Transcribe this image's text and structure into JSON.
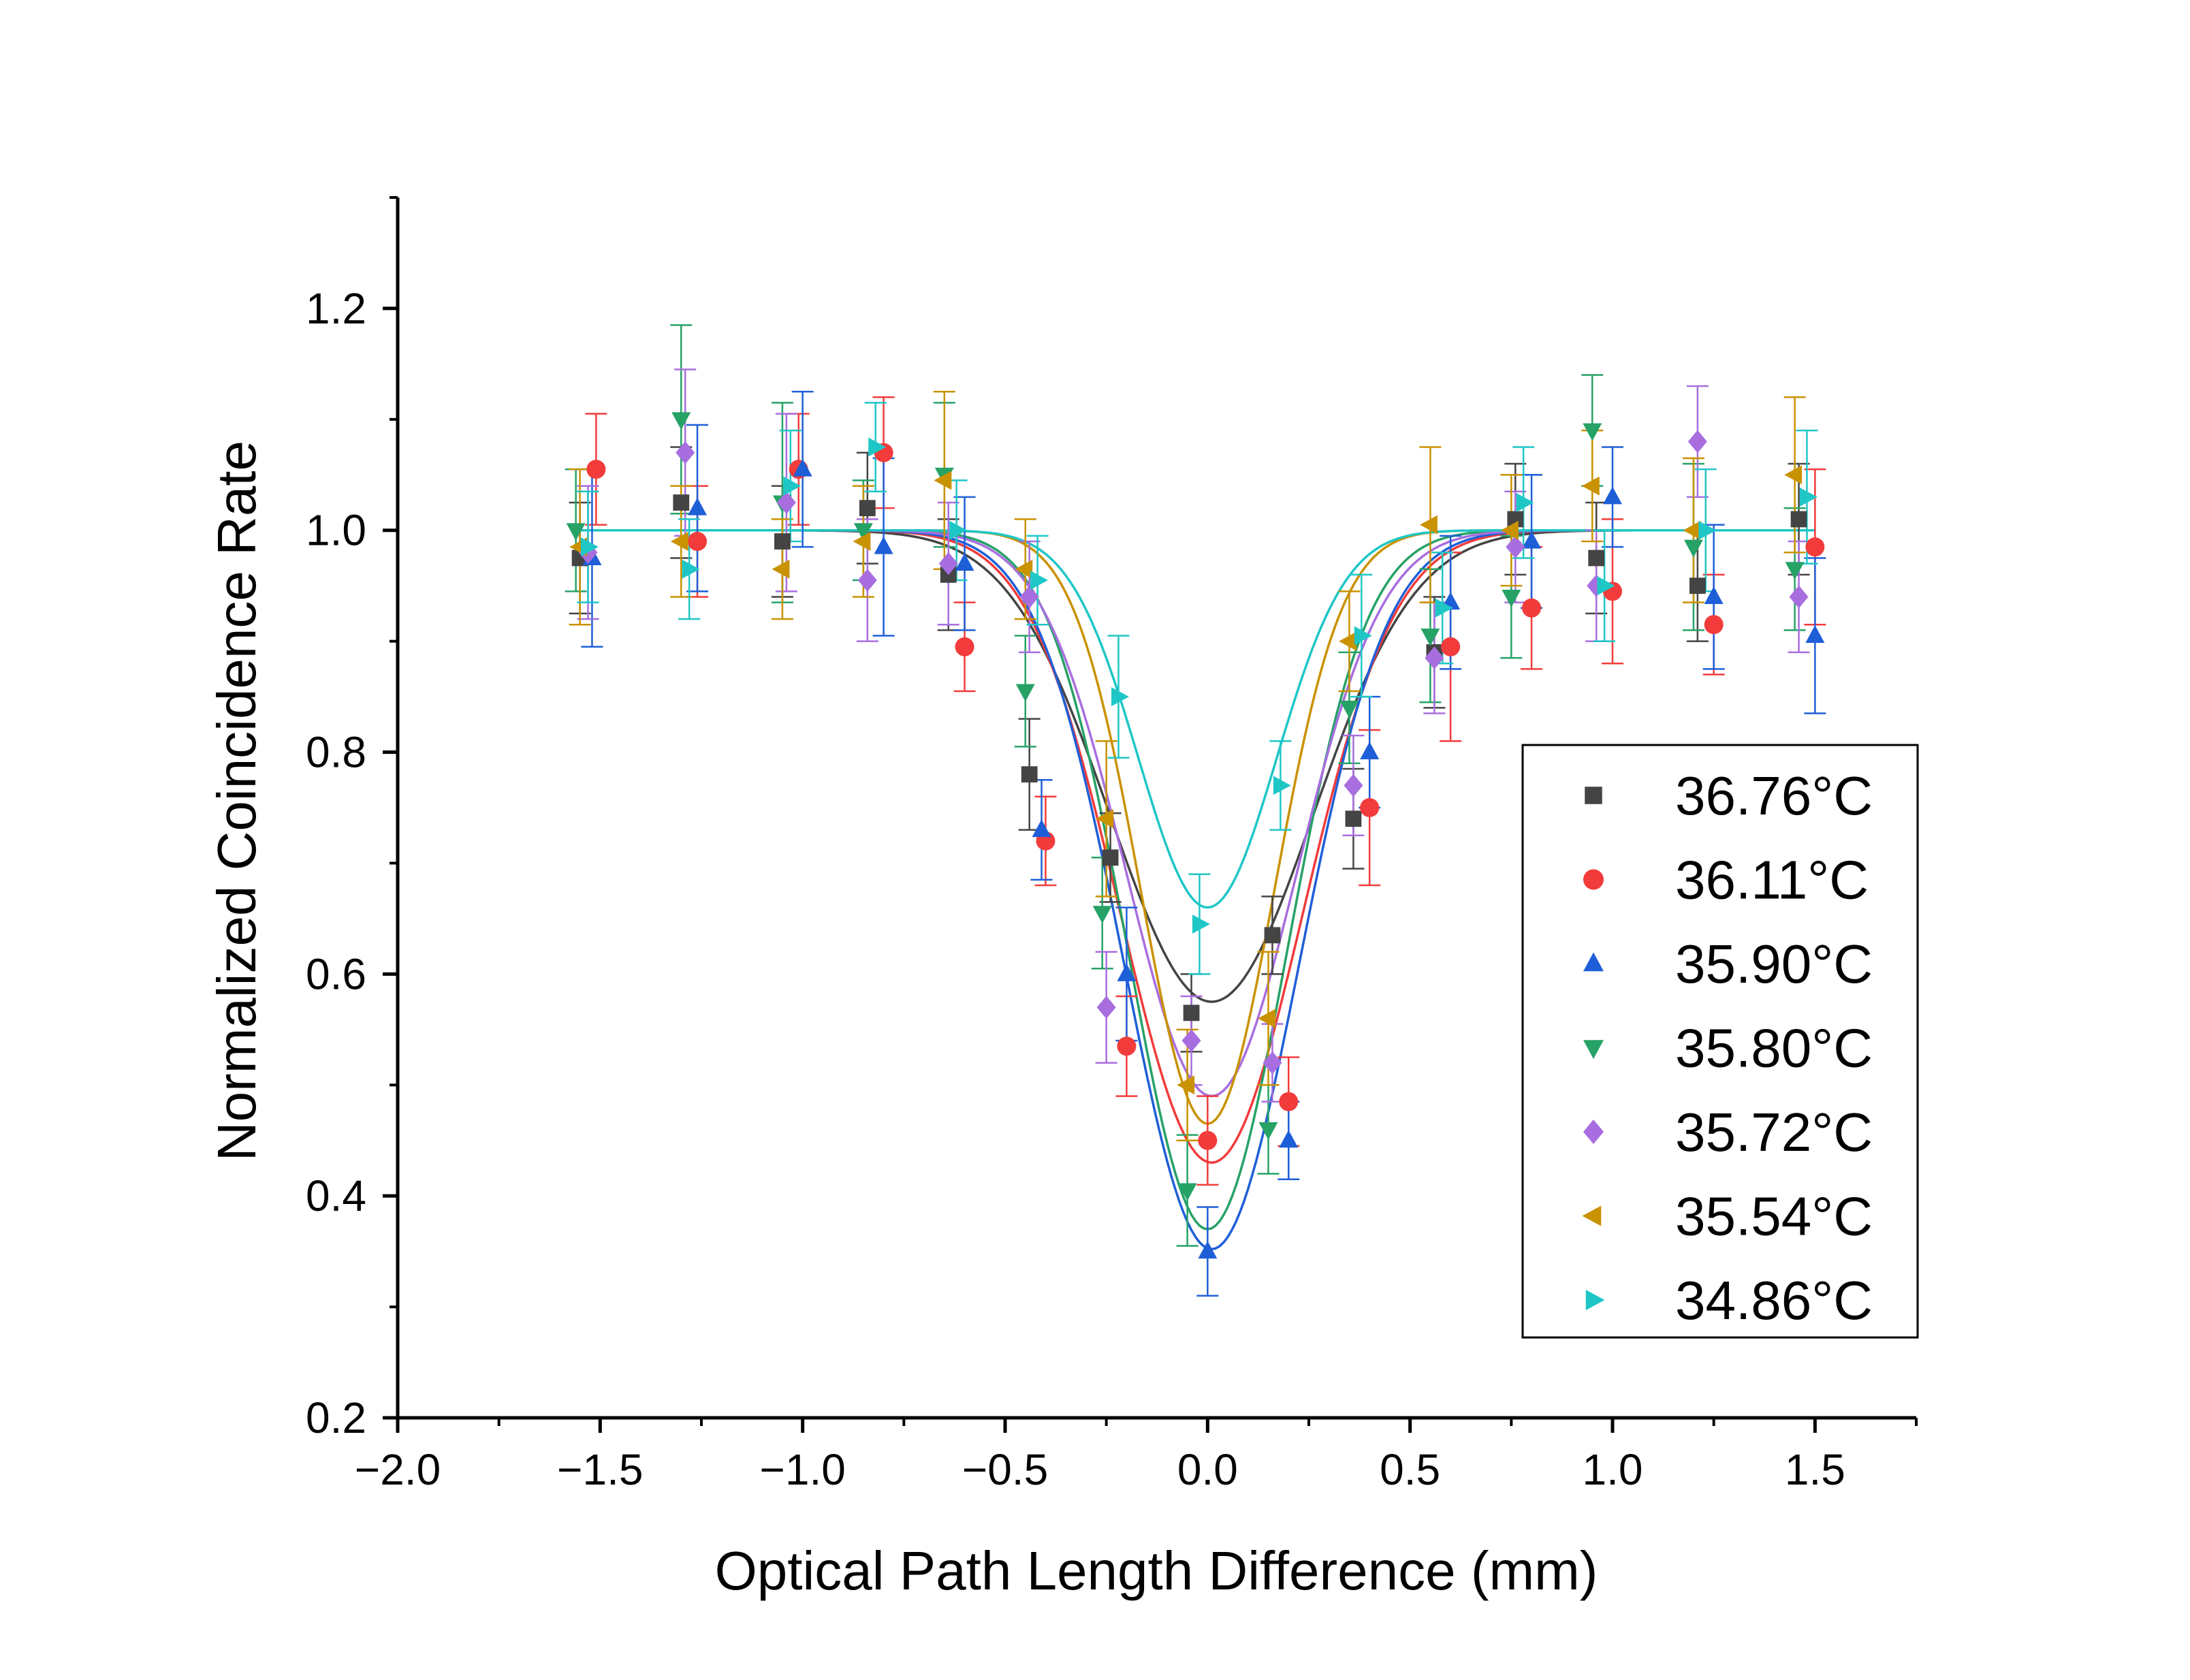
{
  "chart_data": {
    "type": "scatter",
    "xlabel": "Optical Path Length Difference (mm)",
    "ylabel": "Normalized Coincidence Rate",
    "xlim": [
      -2.0,
      1.75
    ],
    "ylim": [
      0.2,
      1.3
    ],
    "xticks": [
      -2.0,
      -1.5,
      -1.0,
      -0.5,
      0.0,
      0.5,
      1.0,
      1.5
    ],
    "yticks": [
      0.2,
      0.4,
      0.6,
      0.8,
      1.0,
      1.2
    ],
    "xtick_labels": [
      "−2.0",
      "−1.5",
      "−1.0",
      "−0.5",
      "0.0",
      "0.5",
      "1.0",
      "1.5"
    ],
    "ytick_labels": [
      "0.2",
      "0.4",
      "0.6",
      "0.8",
      "1.0",
      "1.2"
    ],
    "legend_position": "right-center",
    "fit_type": "gaussian dip",
    "series": [
      {
        "name": "36.76°C",
        "color": "#444444",
        "marker": "square",
        "fit": {
          "baseline": 1.0,
          "depth": 0.425,
          "sigma": 0.25,
          "center": 0.01
        },
        "points": [
          {
            "x": -1.55,
            "y": 0.975,
            "err": 0.05
          },
          {
            "x": -1.3,
            "y": 1.025,
            "err": 0.05
          },
          {
            "x": -1.05,
            "y": 0.99,
            "err": 0.05
          },
          {
            "x": -0.84,
            "y": 1.02,
            "err": 0.05
          },
          {
            "x": -0.64,
            "y": 0.96,
            "err": 0.05
          },
          {
            "x": -0.44,
            "y": 0.78,
            "err": 0.05
          },
          {
            "x": -0.24,
            "y": 0.705,
            "err": 0.04
          },
          {
            "x": -0.04,
            "y": 0.565,
            "err": 0.035
          },
          {
            "x": 0.16,
            "y": 0.635,
            "err": 0.035
          },
          {
            "x": 0.36,
            "y": 0.74,
            "err": 0.045
          },
          {
            "x": 0.56,
            "y": 0.89,
            "err": 0.05
          },
          {
            "x": 0.76,
            "y": 1.01,
            "err": 0.05
          },
          {
            "x": 0.96,
            "y": 0.975,
            "err": 0.05
          },
          {
            "x": 1.21,
            "y": 0.95,
            "err": 0.05
          },
          {
            "x": 1.46,
            "y": 1.01,
            "err": 0.05
          }
        ]
      },
      {
        "name": "36.11°C",
        "color": "#f23b3b",
        "marker": "circle",
        "fit": {
          "baseline": 1.0,
          "depth": 0.57,
          "sigma": 0.225,
          "center": 0.01
        },
        "points": [
          {
            "x": -1.51,
            "y": 1.055,
            "err": 0.05
          },
          {
            "x": -1.26,
            "y": 0.99,
            "err": 0.05
          },
          {
            "x": -1.01,
            "y": 1.055,
            "err": 0.05
          },
          {
            "x": -0.8,
            "y": 1.07,
            "err": 0.05
          },
          {
            "x": -0.6,
            "y": 0.895,
            "err": 0.04
          },
          {
            "x": -0.4,
            "y": 0.72,
            "err": 0.04
          },
          {
            "x": -0.2,
            "y": 0.535,
            "err": 0.045
          },
          {
            "x": 0.0,
            "y": 0.45,
            "err": 0.04
          },
          {
            "x": 0.2,
            "y": 0.485,
            "err": 0.04
          },
          {
            "x": 0.4,
            "y": 0.75,
            "err": 0.07
          },
          {
            "x": 0.6,
            "y": 0.895,
            "err": 0.085
          },
          {
            "x": 0.8,
            "y": 0.93,
            "err": 0.055
          },
          {
            "x": 1.0,
            "y": 0.945,
            "err": 0.065
          },
          {
            "x": 1.25,
            "y": 0.915,
            "err": 0.045
          },
          {
            "x": 1.5,
            "y": 0.985,
            "err": 0.07
          }
        ]
      },
      {
        "name": "35.90°C",
        "color": "#1e5fd8",
        "marker": "triangle-up",
        "fit": {
          "baseline": 1.0,
          "depth": 0.648,
          "sigma": 0.215,
          "center": 0.01
        },
        "points": [
          {
            "x": -1.52,
            "y": 0.975,
            "err": 0.08
          },
          {
            "x": -1.26,
            "y": 1.02,
            "err": 0.075
          },
          {
            "x": -1.0,
            "y": 1.055,
            "err": 0.07
          },
          {
            "x": -0.8,
            "y": 0.985,
            "err": 0.08
          },
          {
            "x": -0.6,
            "y": 0.97,
            "err": 0.06
          },
          {
            "x": -0.41,
            "y": 0.73,
            "err": 0.045
          },
          {
            "x": -0.2,
            "y": 0.6,
            "err": 0.06
          },
          {
            "x": 0.0,
            "y": 0.35,
            "err": 0.04
          },
          {
            "x": 0.2,
            "y": 0.45,
            "err": 0.035
          },
          {
            "x": 0.4,
            "y": 0.8,
            "err": 0.05
          },
          {
            "x": 0.6,
            "y": 0.935,
            "err": 0.06
          },
          {
            "x": 0.8,
            "y": 0.99,
            "err": 0.06
          },
          {
            "x": 1.0,
            "y": 1.03,
            "err": 0.045
          },
          {
            "x": 1.25,
            "y": 0.94,
            "err": 0.065
          },
          {
            "x": 1.5,
            "y": 0.905,
            "err": 0.07
          }
        ]
      },
      {
        "name": "35.80°C",
        "color": "#26a266",
        "marker": "triangle-down",
        "fit": {
          "baseline": 1.0,
          "depth": 0.63,
          "sigma": 0.195,
          "center": 0.0
        },
        "points": [
          {
            "x": -1.56,
            "y": 1.0,
            "err": 0.055
          },
          {
            "x": -1.3,
            "y": 1.1,
            "err": 0.085
          },
          {
            "x": -1.05,
            "y": 1.025,
            "err": 0.09
          },
          {
            "x": -0.85,
            "y": 1.0,
            "err": 0.045
          },
          {
            "x": -0.65,
            "y": 1.05,
            "err": 0.065
          },
          {
            "x": -0.45,
            "y": 0.855,
            "err": 0.05
          },
          {
            "x": -0.26,
            "y": 0.655,
            "err": 0.05
          },
          {
            "x": -0.05,
            "y": 0.405,
            "err": 0.05
          },
          {
            "x": 0.15,
            "y": 0.46,
            "err": 0.04
          },
          {
            "x": 0.35,
            "y": 0.84,
            "err": 0.05
          },
          {
            "x": 0.55,
            "y": 0.905,
            "err": 0.06
          },
          {
            "x": 0.75,
            "y": 0.94,
            "err": 0.055
          },
          {
            "x": 0.95,
            "y": 1.09,
            "err": 0.05
          },
          {
            "x": 1.2,
            "y": 0.985,
            "err": 0.075
          },
          {
            "x": 1.45,
            "y": 0.965,
            "err": 0.055
          }
        ]
      },
      {
        "name": "35.72°C",
        "color": "#a86ee0",
        "marker": "diamond",
        "fit": {
          "baseline": 1.0,
          "depth": 0.51,
          "sigma": 0.21,
          "center": 0.01
        },
        "points": [
          {
            "x": -1.53,
            "y": 0.98,
            "err": 0.06
          },
          {
            "x": -1.29,
            "y": 1.07,
            "err": 0.075
          },
          {
            "x": -1.04,
            "y": 1.025,
            "err": 0.08
          },
          {
            "x": -0.84,
            "y": 0.955,
            "err": 0.055
          },
          {
            "x": -0.64,
            "y": 0.97,
            "err": 0.055
          },
          {
            "x": -0.44,
            "y": 0.94,
            "err": 0.05
          },
          {
            "x": -0.25,
            "y": 0.57,
            "err": 0.05
          },
          {
            "x": -0.04,
            "y": 0.54,
            "err": 0.04
          },
          {
            "x": 0.16,
            "y": 0.52,
            "err": 0.035
          },
          {
            "x": 0.36,
            "y": 0.77,
            "err": 0.045
          },
          {
            "x": 0.56,
            "y": 0.885,
            "err": 0.05
          },
          {
            "x": 0.76,
            "y": 0.985,
            "err": 0.05
          },
          {
            "x": 0.96,
            "y": 0.95,
            "err": 0.05
          },
          {
            "x": 1.21,
            "y": 1.08,
            "err": 0.05
          },
          {
            "x": 1.46,
            "y": 0.94,
            "err": 0.05
          }
        ]
      },
      {
        "name": "35.54°C",
        "color": "#c99200",
        "marker": "triangle-left",
        "fit": {
          "baseline": 1.0,
          "depth": 0.535,
          "sigma": 0.165,
          "center": 0.0
        },
        "points": [
          {
            "x": -1.55,
            "y": 0.985,
            "err": 0.07
          },
          {
            "x": -1.3,
            "y": 0.99,
            "err": 0.05
          },
          {
            "x": -1.05,
            "y": 0.965,
            "err": 0.045
          },
          {
            "x": -0.85,
            "y": 0.99,
            "err": 0.05
          },
          {
            "x": -0.65,
            "y": 1.045,
            "err": 0.08
          },
          {
            "x": -0.45,
            "y": 0.965,
            "err": 0.045
          },
          {
            "x": -0.25,
            "y": 0.74,
            "err": 0.07
          },
          {
            "x": -0.05,
            "y": 0.5,
            "err": 0.05
          },
          {
            "x": 0.15,
            "y": 0.56,
            "err": 0.06
          },
          {
            "x": 0.35,
            "y": 0.9,
            "err": 0.045
          },
          {
            "x": 0.55,
            "y": 1.005,
            "err": 0.07
          },
          {
            "x": 0.75,
            "y": 1.0,
            "err": 0.05
          },
          {
            "x": 0.95,
            "y": 1.04,
            "err": 0.05
          },
          {
            "x": 1.2,
            "y": 1.0,
            "err": 0.065
          },
          {
            "x": 1.45,
            "y": 1.05,
            "err": 0.07
          }
        ]
      },
      {
        "name": "34.86°C",
        "color": "#1fc6c6",
        "marker": "triangle-right",
        "fit": {
          "baseline": 1.0,
          "depth": 0.34,
          "sigma": 0.17,
          "center": 0.0
        },
        "points": [
          {
            "x": -1.53,
            "y": 0.985,
            "err": 0.05
          },
          {
            "x": -1.28,
            "y": 0.965,
            "err": 0.045
          },
          {
            "x": -1.03,
            "y": 1.04,
            "err": 0.05
          },
          {
            "x": -0.82,
            "y": 1.075,
            "err": 0.04
          },
          {
            "x": -0.62,
            "y": 1.0,
            "err": 0.045
          },
          {
            "x": -0.42,
            "y": 0.955,
            "err": 0.04
          },
          {
            "x": -0.22,
            "y": 0.85,
            "err": 0.055
          },
          {
            "x": -0.02,
            "y": 0.645,
            "err": 0.045
          },
          {
            "x": 0.18,
            "y": 0.77,
            "err": 0.04
          },
          {
            "x": 0.38,
            "y": 0.905,
            "err": 0.055
          },
          {
            "x": 0.58,
            "y": 0.93,
            "err": 0.05
          },
          {
            "x": 0.78,
            "y": 1.025,
            "err": 0.05
          },
          {
            "x": 0.98,
            "y": 0.95,
            "err": 0.05
          },
          {
            "x": 1.23,
            "y": 1.0,
            "err": 0.055
          },
          {
            "x": 1.48,
            "y": 1.03,
            "err": 0.06
          }
        ]
      }
    ]
  }
}
